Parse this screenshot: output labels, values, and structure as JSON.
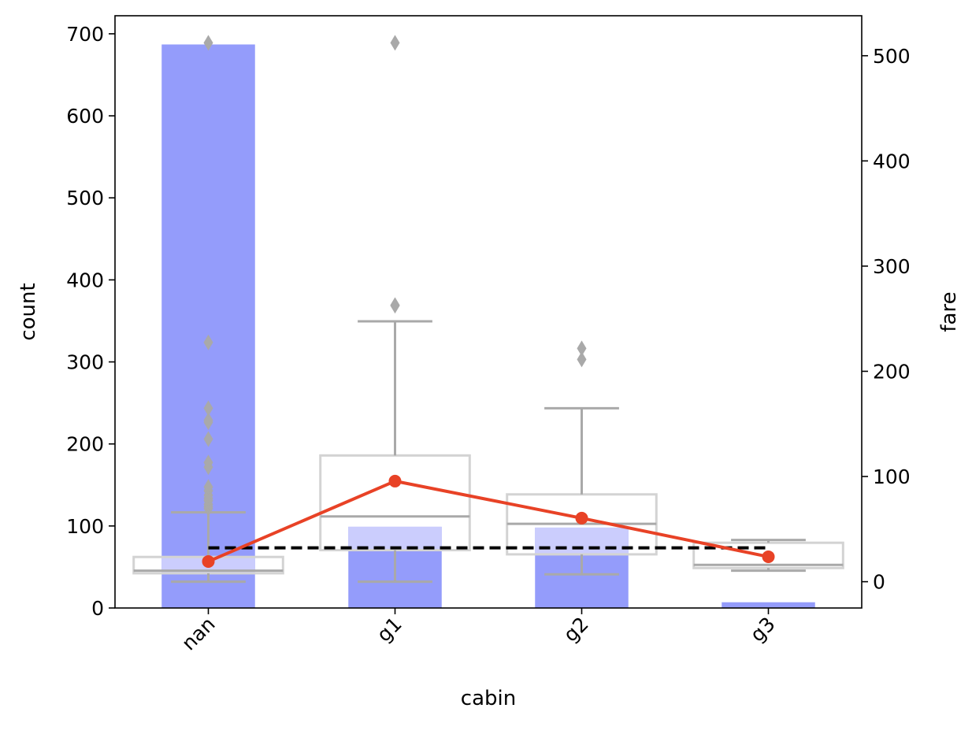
{
  "chart_data": {
    "type": "bar",
    "xlabel": "cabin",
    "ylabel": "count",
    "y2label": "fare",
    "categories": [
      "nan",
      "g1",
      "g2",
      "g3"
    ],
    "ylim": [
      0,
      722
    ],
    "y2lim": [
      -25,
      538
    ],
    "yticks": [
      0,
      100,
      200,
      300,
      400,
      500,
      600,
      700
    ],
    "y2ticks": [
      0,
      100,
      200,
      300,
      400,
      500
    ],
    "bar_series": {
      "axis": "left",
      "values": [
        687,
        99,
        98,
        7
      ]
    },
    "fare_boxplots": {
      "axis": "right",
      "boxes": [
        {
          "category": "nan",
          "whisker_low": 0,
          "q1": 8.0,
          "median": 10.5,
          "q3": 23.5,
          "whisker_high": 66.0,
          "outliers": [
            69.5,
            71.3,
            73.5,
            77.0,
            79.2,
            82.2,
            86.5,
            90.0,
            108.9,
            113.3,
            135.6,
            151.6,
            153.5,
            164.9,
            227.5,
            512.3
          ]
        },
        {
          "category": "g1",
          "whisker_low": 0,
          "q1": 30.0,
          "median": 62.0,
          "q3": 120.0,
          "whisker_high": 247.5,
          "outliers": [
            262.4,
            263.0,
            512.3
          ]
        },
        {
          "category": "g2",
          "whisker_low": 7.0,
          "q1": 26.0,
          "median": 55.0,
          "q3": 83.0,
          "whisker_high": 164.9,
          "outliers": [
            211.3,
            221.8
          ]
        },
        {
          "category": "g3",
          "whisker_low": 10.5,
          "q1": 13.0,
          "median": 16.0,
          "q3": 37.0,
          "whisker_high": 39.7,
          "outliers": []
        }
      ]
    },
    "fare_mean_line": {
      "axis": "right",
      "values": [
        19.2,
        95.6,
        60.4,
        23.7
      ]
    },
    "fare_overall_mean_line": {
      "axis": "right",
      "value": 32.2,
      "style": "dashed"
    },
    "colors": {
      "bar": "#949cfb",
      "bar_light": "#cbcdfd",
      "box": "#d3d3d3",
      "whisker": "#a9a9a9",
      "mean_line": "#e84226",
      "overall_mean": "#000000"
    }
  }
}
